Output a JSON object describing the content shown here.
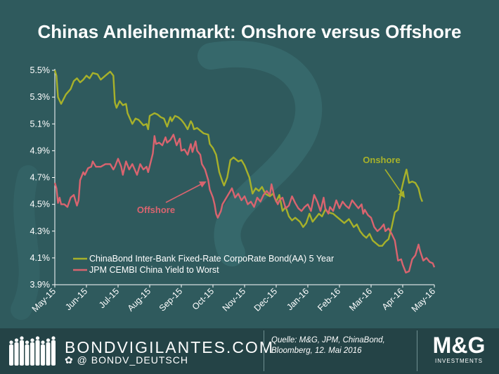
{
  "title": "Chinas Anleihenmarkt: Onshore versus Offshore",
  "colors": {
    "background": "#2f5a5d",
    "onshore": "#a7b12a",
    "offshore": "#d9646f",
    "text": "#ffffff"
  },
  "chart_data": {
    "type": "line",
    "title": "Chinas Anleihenmarkt: Onshore versus Offshore",
    "x_ticks": [
      "May-15",
      "Jun-15",
      "Jul-15",
      "Aug-15",
      "Sep-15",
      "Oct-15",
      "Nov-15",
      "Dec-15",
      "Jan-16",
      "Feb-16",
      "Mar-16",
      "Apr-16",
      "May-16"
    ],
    "y_ticks": [
      "5.5%",
      "5.3%",
      "5.1%",
      "4.9%",
      "4.7%",
      "4.5%",
      "4.3%",
      "4.1%",
      "3.9%"
    ],
    "ylim": [
      3.9,
      5.5
    ],
    "y_unit": "%",
    "grid": false,
    "legend_position": "bottom-left",
    "annotations": [
      {
        "text": "Onshore",
        "series": 0
      },
      {
        "text": "Offshore",
        "series": 1
      }
    ],
    "series": [
      {
        "name": "ChinaBond Inter-Bank Fixed-Rate CorpoRate Bond(AA) 5 Year",
        "points": [
          [
            0,
            5.5
          ],
          [
            0.05,
            5.46
          ],
          [
            0.1,
            5.3
          ],
          [
            0.2,
            5.25
          ],
          [
            0.35,
            5.32
          ],
          [
            0.5,
            5.36
          ],
          [
            0.6,
            5.42
          ],
          [
            0.7,
            5.44
          ],
          [
            0.8,
            5.41
          ],
          [
            0.9,
            5.43
          ],
          [
            1.0,
            5.46
          ],
          [
            1.1,
            5.44
          ],
          [
            1.2,
            5.48
          ],
          [
            1.35,
            5.47
          ],
          [
            1.45,
            5.43
          ],
          [
            1.6,
            5.46
          ],
          [
            1.75,
            5.49
          ],
          [
            1.85,
            5.46
          ],
          [
            1.9,
            5.26
          ],
          [
            1.95,
            5.22
          ],
          [
            2.05,
            5.27
          ],
          [
            2.15,
            5.24
          ],
          [
            2.25,
            5.25
          ],
          [
            2.3,
            5.18
          ],
          [
            2.45,
            5.1
          ],
          [
            2.55,
            5.14
          ],
          [
            2.65,
            5.13
          ],
          [
            2.8,
            5.09
          ],
          [
            2.9,
            5.1
          ],
          [
            2.95,
            5.06
          ],
          [
            3.0,
            5.16
          ],
          [
            3.15,
            5.18
          ],
          [
            3.25,
            5.17
          ],
          [
            3.35,
            5.15
          ],
          [
            3.45,
            5.14
          ],
          [
            3.55,
            5.08
          ],
          [
            3.65,
            5.15
          ],
          [
            3.7,
            5.12
          ],
          [
            3.8,
            5.16
          ],
          [
            3.9,
            5.15
          ],
          [
            4.0,
            5.13
          ],
          [
            4.1,
            5.1
          ],
          [
            4.2,
            5.06
          ],
          [
            4.3,
            5.12
          ],
          [
            4.35,
            5.1
          ],
          [
            4.4,
            5.06
          ],
          [
            4.5,
            5.07
          ],
          [
            4.6,
            5.05
          ],
          [
            4.7,
            5.03
          ],
          [
            4.85,
            5.02
          ],
          [
            4.9,
            4.95
          ],
          [
            5.0,
            4.92
          ],
          [
            5.1,
            4.87
          ],
          [
            5.2,
            4.74
          ],
          [
            5.3,
            4.67
          ],
          [
            5.35,
            4.64
          ],
          [
            5.45,
            4.7
          ],
          [
            5.55,
            4.83
          ],
          [
            5.65,
            4.85
          ],
          [
            5.8,
            4.82
          ],
          [
            5.9,
            4.83
          ],
          [
            6.0,
            4.79
          ],
          [
            6.15,
            4.7
          ],
          [
            6.25,
            4.58
          ],
          [
            6.35,
            4.62
          ],
          [
            6.45,
            4.6
          ],
          [
            6.55,
            4.63
          ],
          [
            6.65,
            4.58
          ],
          [
            6.8,
            4.56
          ],
          [
            6.9,
            4.58
          ],
          [
            7.0,
            4.52
          ],
          [
            7.1,
            4.57
          ],
          [
            7.2,
            4.45
          ],
          [
            7.3,
            4.48
          ],
          [
            7.4,
            4.41
          ],
          [
            7.5,
            4.38
          ],
          [
            7.6,
            4.4
          ],
          [
            7.75,
            4.37
          ],
          [
            7.85,
            4.33
          ],
          [
            7.95,
            4.36
          ],
          [
            8.05,
            4.43
          ],
          [
            8.15,
            4.37
          ],
          [
            8.25,
            4.4
          ],
          [
            8.35,
            4.43
          ],
          [
            8.45,
            4.41
          ],
          [
            8.55,
            4.46
          ],
          [
            8.65,
            4.44
          ],
          [
            8.8,
            4.43
          ],
          [
            8.9,
            4.41
          ],
          [
            9.0,
            4.39
          ],
          [
            9.15,
            4.36
          ],
          [
            9.3,
            4.39
          ],
          [
            9.45,
            4.33
          ],
          [
            9.55,
            4.35
          ],
          [
            9.65,
            4.3
          ],
          [
            9.75,
            4.27
          ],
          [
            9.85,
            4.25
          ],
          [
            9.95,
            4.28
          ],
          [
            10.05,
            4.23
          ],
          [
            10.15,
            4.21
          ],
          [
            10.25,
            4.19
          ],
          [
            10.35,
            4.19
          ],
          [
            10.45,
            4.22
          ],
          [
            10.55,
            4.24
          ],
          [
            10.65,
            4.33
          ],
          [
            10.75,
            4.44
          ],
          [
            10.85,
            4.46
          ],
          [
            10.95,
            4.6
          ],
          [
            11.05,
            4.7
          ],
          [
            11.12,
            4.76
          ],
          [
            11.2,
            4.66
          ],
          [
            11.3,
            4.67
          ],
          [
            11.4,
            4.66
          ],
          [
            11.5,
            4.62
          ],
          [
            11.57,
            4.55
          ],
          [
            11.62,
            4.52
          ]
        ]
      },
      {
        "name": "JPM CEMBI China Yield to Worst",
        "points": [
          [
            0,
            4.66
          ],
          [
            0.05,
            4.62
          ],
          [
            0.1,
            4.51
          ],
          [
            0.15,
            4.55
          ],
          [
            0.2,
            4.5
          ],
          [
            0.3,
            4.5
          ],
          [
            0.4,
            4.48
          ],
          [
            0.5,
            4.55
          ],
          [
            0.6,
            4.57
          ],
          [
            0.7,
            4.49
          ],
          [
            0.75,
            4.53
          ],
          [
            0.8,
            4.68
          ],
          [
            0.9,
            4.74
          ],
          [
            0.95,
            4.72
          ],
          [
            1.05,
            4.77
          ],
          [
            1.15,
            4.78
          ],
          [
            1.2,
            4.82
          ],
          [
            1.3,
            4.78
          ],
          [
            1.45,
            4.78
          ],
          [
            1.6,
            4.8
          ],
          [
            1.75,
            4.8
          ],
          [
            1.85,
            4.76
          ],
          [
            1.9,
            4.78
          ],
          [
            2.0,
            4.84
          ],
          [
            2.1,
            4.78
          ],
          [
            2.15,
            4.72
          ],
          [
            2.25,
            4.82
          ],
          [
            2.35,
            4.76
          ],
          [
            2.45,
            4.8
          ],
          [
            2.6,
            4.72
          ],
          [
            2.7,
            4.8
          ],
          [
            2.8,
            4.76
          ],
          [
            2.9,
            4.78
          ],
          [
            2.95,
            4.74
          ],
          [
            3.1,
            4.88
          ],
          [
            3.15,
            5.01
          ],
          [
            3.2,
            4.95
          ],
          [
            3.3,
            4.96
          ],
          [
            3.4,
            4.94
          ],
          [
            3.5,
            5.0
          ],
          [
            3.55,
            4.96
          ],
          [
            3.65,
            4.98
          ],
          [
            3.75,
            5.02
          ],
          [
            3.85,
            4.94
          ],
          [
            3.95,
            4.99
          ],
          [
            4.0,
            4.9
          ],
          [
            4.1,
            4.91
          ],
          [
            4.2,
            4.87
          ],
          [
            4.3,
            4.95
          ],
          [
            4.35,
            4.89
          ],
          [
            4.45,
            4.97
          ],
          [
            4.5,
            4.9
          ],
          [
            4.6,
            4.87
          ],
          [
            4.65,
            4.8
          ],
          [
            4.75,
            4.76
          ],
          [
            4.85,
            4.68
          ],
          [
            4.9,
            4.61
          ],
          [
            4.95,
            4.58
          ],
          [
            5.0,
            4.55
          ],
          [
            5.05,
            4.5
          ],
          [
            5.1,
            4.43
          ],
          [
            5.15,
            4.4
          ],
          [
            5.25,
            4.45
          ],
          [
            5.3,
            4.5
          ],
          [
            5.35,
            4.52
          ],
          [
            5.45,
            4.56
          ],
          [
            5.55,
            4.6
          ],
          [
            5.6,
            4.62
          ],
          [
            5.7,
            4.55
          ],
          [
            5.8,
            4.58
          ],
          [
            5.9,
            4.53
          ],
          [
            6.0,
            4.56
          ],
          [
            6.1,
            4.5
          ],
          [
            6.2,
            4.52
          ],
          [
            6.3,
            4.48
          ],
          [
            6.4,
            4.55
          ],
          [
            6.5,
            4.52
          ],
          [
            6.6,
            4.57
          ],
          [
            6.7,
            4.6
          ],
          [
            6.8,
            4.57
          ],
          [
            6.85,
            4.65
          ],
          [
            6.95,
            4.55
          ],
          [
            7.05,
            4.5
          ],
          [
            7.1,
            4.53
          ],
          [
            7.2,
            4.55
          ],
          [
            7.3,
            4.47
          ],
          [
            7.4,
            4.49
          ],
          [
            7.5,
            4.56
          ],
          [
            7.6,
            4.51
          ],
          [
            7.7,
            4.47
          ],
          [
            7.8,
            4.45
          ],
          [
            7.9,
            4.48
          ],
          [
            8.0,
            4.5
          ],
          [
            8.1,
            4.45
          ],
          [
            8.2,
            4.57
          ],
          [
            8.3,
            4.52
          ],
          [
            8.4,
            4.45
          ],
          [
            8.5,
            4.55
          ],
          [
            8.55,
            4.47
          ],
          [
            8.65,
            4.43
          ],
          [
            8.7,
            4.48
          ],
          [
            8.8,
            4.45
          ],
          [
            8.9,
            4.53
          ],
          [
            9.0,
            4.47
          ],
          [
            9.1,
            4.52
          ],
          [
            9.2,
            4.49
          ],
          [
            9.3,
            4.47
          ],
          [
            9.4,
            4.53
          ],
          [
            9.5,
            4.5
          ],
          [
            9.6,
            4.47
          ],
          [
            9.7,
            4.5
          ],
          [
            9.75,
            4.43
          ],
          [
            9.8,
            4.46
          ],
          [
            9.9,
            4.42
          ],
          [
            10.0,
            4.4
          ],
          [
            10.1,
            4.33
          ],
          [
            10.2,
            4.3
          ],
          [
            10.3,
            4.32
          ],
          [
            10.4,
            4.35
          ],
          [
            10.45,
            4.3
          ],
          [
            10.55,
            4.32
          ],
          [
            10.65,
            4.28
          ],
          [
            10.75,
            4.23
          ],
          [
            10.85,
            4.08
          ],
          [
            10.95,
            4.09
          ],
          [
            11.0,
            4.05
          ],
          [
            11.1,
            3.99
          ],
          [
            11.2,
            4.0
          ],
          [
            11.3,
            4.09
          ],
          [
            11.4,
            4.12
          ],
          [
            11.5,
            4.2
          ],
          [
            11.55,
            4.15
          ],
          [
            11.65,
            4.08
          ],
          [
            11.75,
            4.1
          ],
          [
            11.85,
            4.07
          ],
          [
            11.95,
            4.06
          ],
          [
            12.0,
            4.03
          ]
        ]
      }
    ]
  },
  "footer": {
    "brand": "BONDVIGILANTES.COM",
    "handle": "@ BONDV_DEUTSCH",
    "twitter_icon": "bird-icon",
    "source_line1": "Quelle: M&G, JPM, ChinaBond,",
    "source_line2": "Bloomberg, 12. Mai 2016",
    "logo_name": "M&G",
    "logo_sub": "INVESTMENTS"
  }
}
